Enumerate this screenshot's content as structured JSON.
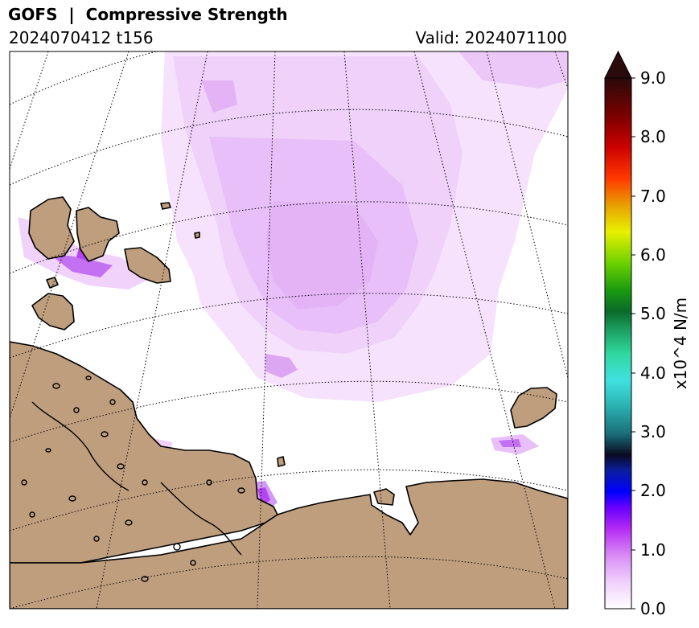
{
  "title": "GOFS  |  Compressive Strength",
  "run": "2024070412 t156",
  "valid": "Valid: 2024071100",
  "colorbar": {
    "label": "x10^4 N/m",
    "ticks": [
      "0.0",
      "1.0",
      "2.0",
      "3.0",
      "4.0",
      "5.0",
      "6.0",
      "7.0",
      "8.0",
      "9.0"
    ],
    "extend": "max"
  },
  "colors": {
    "land": "#bf9e7e",
    "ice_light": "#f3d8fb",
    "ice_mid": "#e6b8f7",
    "ice_strong": "#b545f0",
    "coast": "#000000"
  }
}
